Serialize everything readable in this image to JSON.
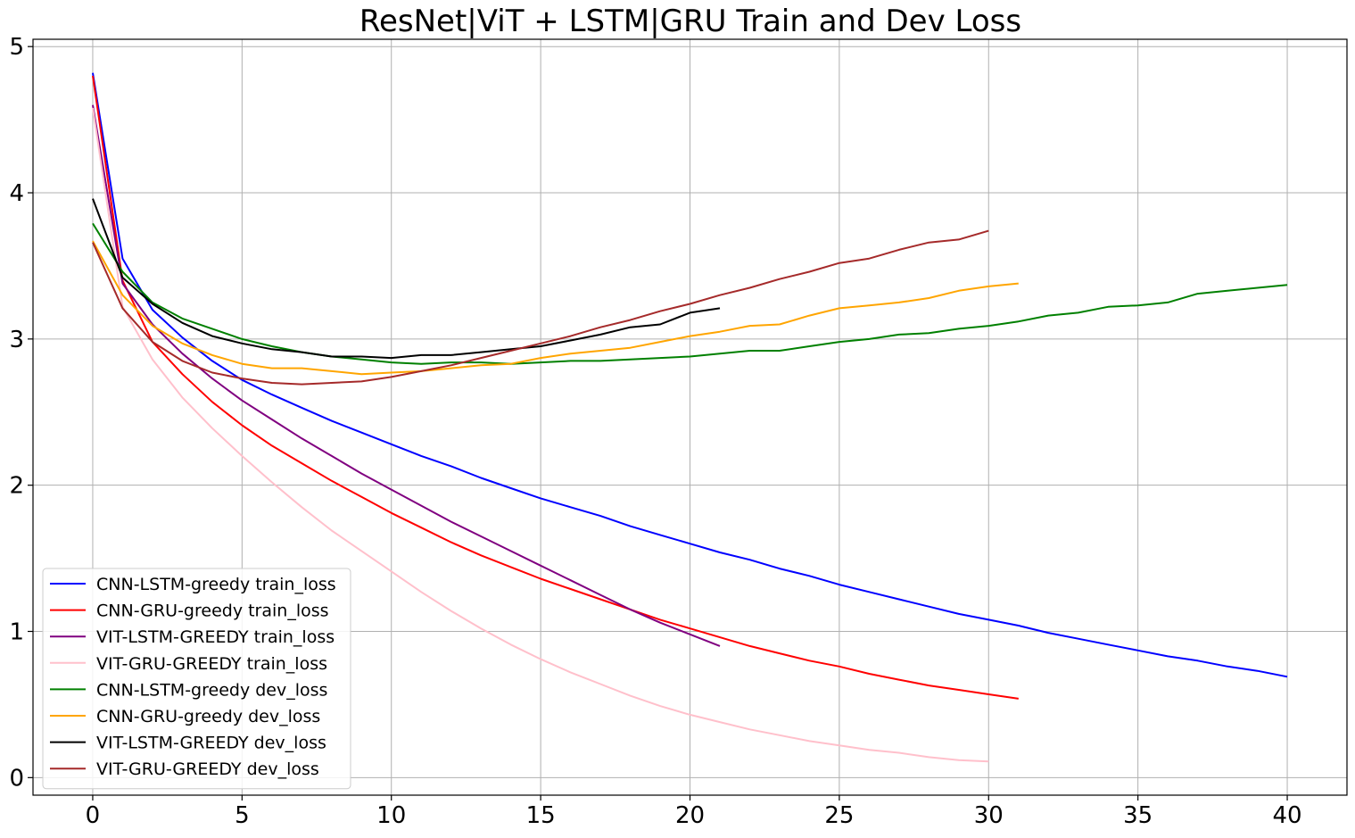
{
  "chart_data": {
    "type": "line",
    "title": "ResNet|ViT + LSTM|GRU Train and Dev Loss",
    "xlabel": "",
    "ylabel": "",
    "xlim": [
      -2,
      42
    ],
    "ylim": [
      -0.12,
      5.05
    ],
    "xticks": [
      0,
      5,
      10,
      15,
      20,
      25,
      30,
      35,
      40
    ],
    "yticks": [
      0,
      1,
      2,
      3,
      4,
      5
    ],
    "grid": true,
    "legend_position": "lower-left",
    "series": [
      {
        "name": "CNN-LSTM-greedy train_loss",
        "color": "#0000ff",
        "values": [
          4.82,
          3.55,
          3.2,
          3.01,
          2.85,
          2.72,
          2.62,
          2.53,
          2.44,
          2.36,
          2.28,
          2.2,
          2.13,
          2.05,
          1.98,
          1.91,
          1.85,
          1.79,
          1.72,
          1.66,
          1.6,
          1.54,
          1.49,
          1.43,
          1.38,
          1.32,
          1.27,
          1.22,
          1.17,
          1.12,
          1.08,
          1.04,
          0.99,
          0.95,
          0.91,
          0.87,
          0.83,
          0.8,
          0.76,
          0.73,
          0.69
        ]
      },
      {
        "name": "CNN-GRU-greedy train_loss",
        "color": "#ff0000",
        "values": [
          4.8,
          3.4,
          2.98,
          2.76,
          2.57,
          2.41,
          2.27,
          2.15,
          2.03,
          1.92,
          1.81,
          1.71,
          1.61,
          1.52,
          1.44,
          1.36,
          1.29,
          1.22,
          1.15,
          1.08,
          1.02,
          0.96,
          0.9,
          0.85,
          0.8,
          0.76,
          0.71,
          0.67,
          0.63,
          0.6,
          0.57,
          0.54
        ]
      },
      {
        "name": "VIT-LSTM-GREEDY train_loss",
        "color": "#800080",
        "values": [
          4.6,
          3.38,
          3.1,
          2.9,
          2.73,
          2.58,
          2.45,
          2.32,
          2.2,
          2.08,
          1.97,
          1.86,
          1.75,
          1.65,
          1.55,
          1.45,
          1.35,
          1.25,
          1.15,
          1.06,
          0.98,
          0.9
        ]
      },
      {
        "name": "VIT-GRU-GREEDY train_loss",
        "color": "#ffc0cb",
        "values": [
          4.58,
          3.22,
          2.86,
          2.6,
          2.39,
          2.2,
          2.02,
          1.85,
          1.69,
          1.55,
          1.41,
          1.27,
          1.14,
          1.02,
          0.91,
          0.81,
          0.72,
          0.64,
          0.56,
          0.49,
          0.43,
          0.38,
          0.33,
          0.29,
          0.25,
          0.22,
          0.19,
          0.17,
          0.14,
          0.12,
          0.11
        ]
      },
      {
        "name": "CNN-LSTM-greedy dev_loss",
        "color": "#008000",
        "values": [
          3.79,
          3.46,
          3.25,
          3.14,
          3.07,
          3.0,
          2.95,
          2.91,
          2.88,
          2.86,
          2.84,
          2.83,
          2.84,
          2.84,
          2.83,
          2.84,
          2.85,
          2.85,
          2.86,
          2.87,
          2.88,
          2.9,
          2.92,
          2.92,
          2.95,
          2.98,
          3.0,
          3.03,
          3.04,
          3.07,
          3.09,
          3.12,
          3.16,
          3.18,
          3.22,
          3.23,
          3.25,
          3.31,
          3.33,
          3.35,
          3.37
        ]
      },
      {
        "name": "CNN-GRU-greedy dev_loss",
        "color": "#ffa500",
        "values": [
          3.67,
          3.3,
          3.09,
          2.97,
          2.89,
          2.83,
          2.8,
          2.8,
          2.78,
          2.76,
          2.77,
          2.78,
          2.8,
          2.82,
          2.83,
          2.87,
          2.9,
          2.92,
          2.94,
          2.98,
          3.02,
          3.05,
          3.09,
          3.1,
          3.16,
          3.21,
          3.23,
          3.25,
          3.28,
          3.33,
          3.36,
          3.38
        ]
      },
      {
        "name": "VIT-LSTM-GREEDY dev_loss",
        "color": "#000000",
        "values": [
          3.96,
          3.42,
          3.24,
          3.11,
          3.02,
          2.97,
          2.93,
          2.91,
          2.88,
          2.88,
          2.87,
          2.89,
          2.89,
          2.91,
          2.93,
          2.95,
          2.99,
          3.03,
          3.08,
          3.1,
          3.18,
          3.21
        ]
      },
      {
        "name": "VIT-GRU-GREEDY dev_loss",
        "color": "#a52a2a",
        "values": [
          3.66,
          3.21,
          2.98,
          2.85,
          2.77,
          2.73,
          2.7,
          2.69,
          2.7,
          2.71,
          2.74,
          2.78,
          2.82,
          2.87,
          2.92,
          2.97,
          3.02,
          3.08,
          3.13,
          3.19,
          3.24,
          3.3,
          3.35,
          3.41,
          3.46,
          3.52,
          3.55,
          3.61,
          3.66,
          3.68,
          3.74
        ]
      }
    ]
  }
}
